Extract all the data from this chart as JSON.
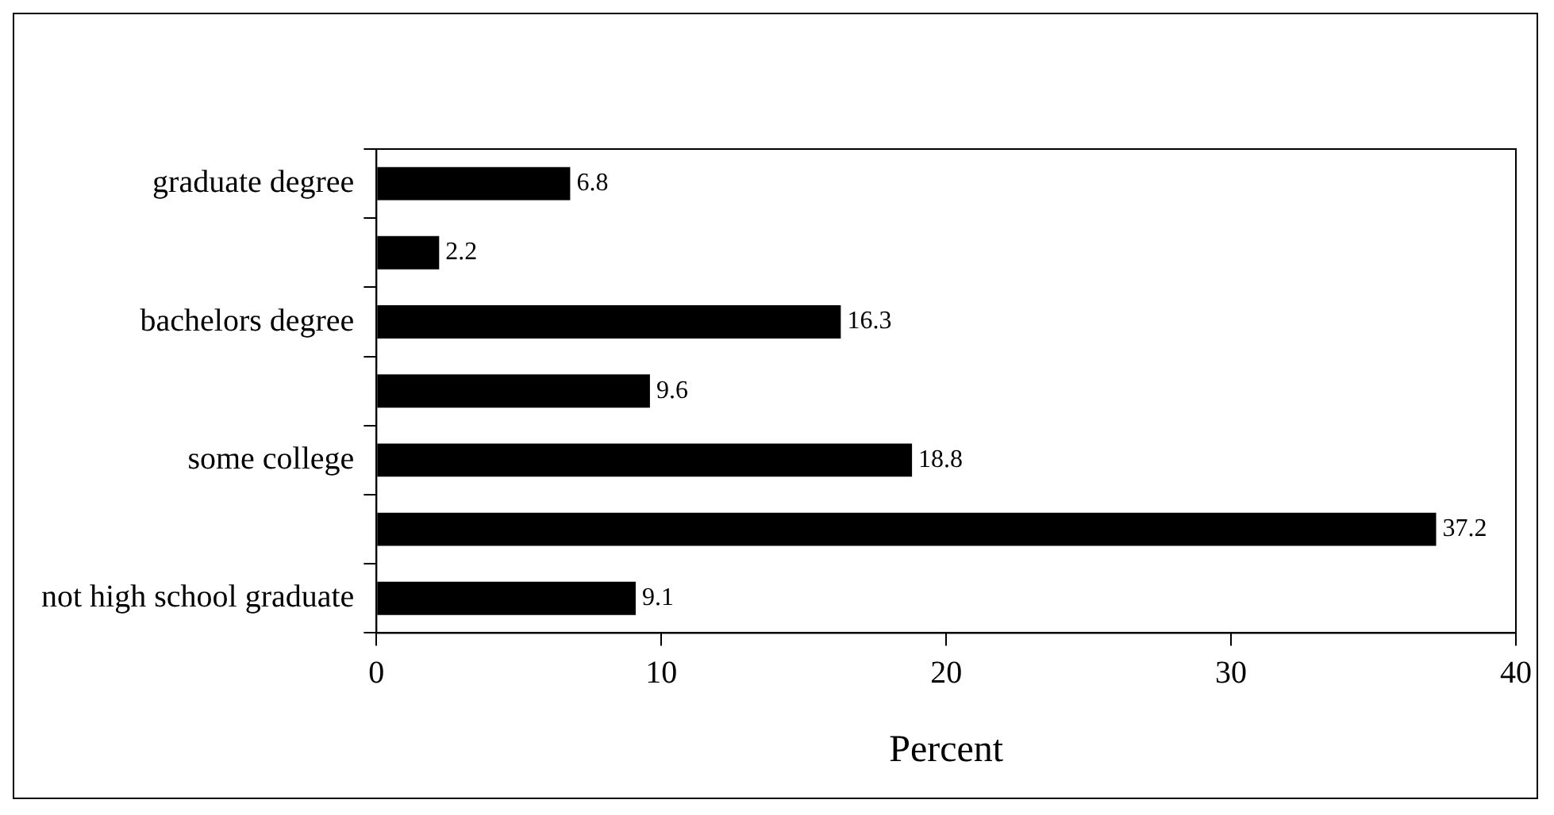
{
  "chart_data": {
    "type": "bar",
    "orientation": "horizontal",
    "xlabel": "Percent",
    "categories": [
      "graduate degree",
      null,
      "bachelors degree",
      null,
      "some college",
      null,
      "not high school graduate"
    ],
    "values": [
      6.8,
      2.2,
      16.3,
      9.6,
      18.8,
      37.2,
      9.1
    ],
    "color": "#000000",
    "xlim": [
      0,
      40
    ],
    "xticks": [
      0,
      10,
      20,
      30,
      40
    ],
    "grid": false,
    "legend": false,
    "data_labels": true
  }
}
